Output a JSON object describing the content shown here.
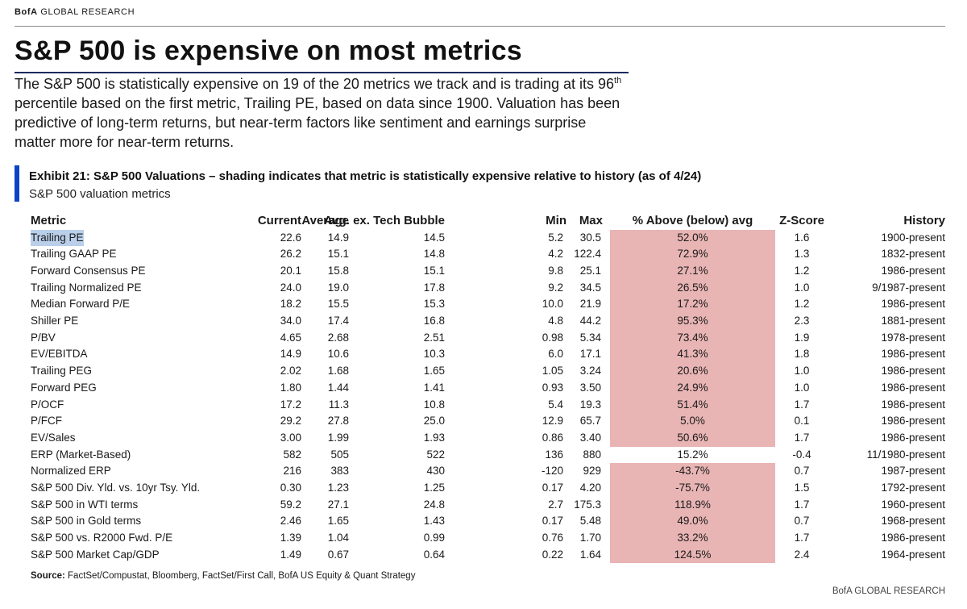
{
  "brand": {
    "bold": "BofA",
    "rest": " GLOBAL RESEARCH"
  },
  "headline": "S&P 500 is expensive on most metrics",
  "summary": {
    "part1": "The S&P 500 is statistically expensive on 19 of the 20 metrics we track and is trading at its 96",
    "sup": "th",
    "part2": " percentile based on the first metric, Trailing PE, based on data since 1900. Valuation has been predictive of long-term returns, but near-term factors like sentiment and earnings surprise matter more for near-term returns."
  },
  "exhibit": {
    "title": "Exhibit 21: S&P 500 Valuations – shading indicates that metric is statistically expensive relative to history (as of 4/24)",
    "subtitle": "S&P 500 valuation metrics"
  },
  "table": {
    "headers": {
      "metric": "Metric",
      "current": "Current",
      "average": "Average",
      "avg_ex": "Avg. ex. Tech Bubble",
      "min": "Min",
      "max": "Max",
      "pct": "% Above (below) avg",
      "z": "Z-Score",
      "history": "History"
    },
    "rows": [
      {
        "metric": "Trailing PE",
        "current": "22.6",
        "average": "14.9",
        "avg_ex": "14.5",
        "min": "5.2",
        "max": "30.5",
        "pct": "52.0%",
        "z": "1.6",
        "history": "1900-present",
        "shaded": true
      },
      {
        "metric": "Trailing GAAP PE",
        "current": "26.2",
        "average": "15.1",
        "avg_ex": "14.8",
        "min": "4.2",
        "max": "122.4",
        "pct": "72.9%",
        "z": "1.3",
        "history": "1832-present",
        "shaded": true
      },
      {
        "metric": "Forward Consensus PE",
        "current": "20.1",
        "average": "15.8",
        "avg_ex": "15.1",
        "min": "9.8",
        "max": "25.1",
        "pct": "27.1%",
        "z": "1.2",
        "history": "1986-present",
        "shaded": true
      },
      {
        "metric": "Trailing Normalized PE",
        "current": "24.0",
        "average": "19.0",
        "avg_ex": "17.8",
        "min": "9.2",
        "max": "34.5",
        "pct": "26.5%",
        "z": "1.0",
        "history": "9/1987-present",
        "shaded": true
      },
      {
        "metric": "Median Forward P/E",
        "current": "18.2",
        "average": "15.5",
        "avg_ex": "15.3",
        "min": "10.0",
        "max": "21.9",
        "pct": "17.2%",
        "z": "1.2",
        "history": "1986-present",
        "shaded": true
      },
      {
        "metric": "Shiller PE",
        "current": "34.0",
        "average": "17.4",
        "avg_ex": "16.8",
        "min": "4.8",
        "max": "44.2",
        "pct": "95.3%",
        "z": "2.3",
        "history": "1881-present",
        "shaded": true
      },
      {
        "metric": "P/BV",
        "current": "4.65",
        "average": "2.68",
        "avg_ex": "2.51",
        "min": "0.98",
        "max": "5.34",
        "pct": "73.4%",
        "z": "1.9",
        "history": "1978-present",
        "shaded": true
      },
      {
        "metric": "EV/EBITDA",
        "current": "14.9",
        "average": "10.6",
        "avg_ex": "10.3",
        "min": "6.0",
        "max": "17.1",
        "pct": "41.3%",
        "z": "1.8",
        "history": "1986-present",
        "shaded": true
      },
      {
        "metric": "Trailing PEG",
        "current": "2.02",
        "average": "1.68",
        "avg_ex": "1.65",
        "min": "1.05",
        "max": "3.24",
        "pct": "20.6%",
        "z": "1.0",
        "history": "1986-present",
        "shaded": true
      },
      {
        "metric": "Forward PEG",
        "current": "1.80",
        "average": "1.44",
        "avg_ex": "1.41",
        "min": "0.93",
        "max": "3.50",
        "pct": "24.9%",
        "z": "1.0",
        "history": "1986-present",
        "shaded": true
      },
      {
        "metric": "P/OCF",
        "current": "17.2",
        "average": "11.3",
        "avg_ex": "10.8",
        "min": "5.4",
        "max": "19.3",
        "pct": "51.4%",
        "z": "1.7",
        "history": "1986-present",
        "shaded": true
      },
      {
        "metric": "P/FCF",
        "current": "29.2",
        "average": "27.8",
        "avg_ex": "25.0",
        "min": "12.9",
        "max": "65.7",
        "pct": "5.0%",
        "z": "0.1",
        "history": "1986-present",
        "shaded": true
      },
      {
        "metric": "EV/Sales",
        "current": "3.00",
        "average": "1.99",
        "avg_ex": "1.93",
        "min": "0.86",
        "max": "3.40",
        "pct": "50.6%",
        "z": "1.7",
        "history": "1986-present",
        "shaded": true
      },
      {
        "metric": "ERP (Market-Based)",
        "current": "582",
        "average": "505",
        "avg_ex": "522",
        "min": "136",
        "max": "880",
        "pct": "15.2%",
        "z": "-0.4",
        "history": "11/1980-present",
        "shaded": false
      },
      {
        "metric": "Normalized ERP",
        "current": "216",
        "average": "383",
        "avg_ex": "430",
        "min": "-120",
        "max": "929",
        "pct": "-43.7%",
        "z": "0.7",
        "history": "1987-present",
        "shaded": true
      },
      {
        "metric": "S&P 500 Div. Yld. vs. 10yr Tsy. Yld.",
        "current": "0.30",
        "average": "1.23",
        "avg_ex": "1.25",
        "min": "0.17",
        "max": "4.20",
        "pct": "-75.7%",
        "z": "1.5",
        "history": "1792-present",
        "shaded": true
      },
      {
        "metric": "S&P 500 in WTI terms",
        "current": "59.2",
        "average": "27.1",
        "avg_ex": "24.8",
        "min": "2.7",
        "max": "175.3",
        "pct": "118.9%",
        "z": "1.7",
        "history": "1960-present",
        "shaded": true
      },
      {
        "metric": "S&P 500 in Gold terms",
        "current": "2.46",
        "average": "1.65",
        "avg_ex": "1.43",
        "min": "0.17",
        "max": "5.48",
        "pct": "49.0%",
        "z": "0.7",
        "history": "1968-present",
        "shaded": true
      },
      {
        "metric": "S&P 500 vs. R2000 Fwd. P/E",
        "current": "1.39",
        "average": "1.04",
        "avg_ex": "0.99",
        "min": "0.76",
        "max": "1.70",
        "pct": "33.2%",
        "z": "1.7",
        "history": "1986-present",
        "shaded": true
      },
      {
        "metric": "S&P 500 Market Cap/GDP",
        "current": "1.49",
        "average": "0.67",
        "avg_ex": "0.64",
        "min": "0.22",
        "max": "1.64",
        "pct": "124.5%",
        "z": "2.4",
        "history": "1964-present",
        "shaded": true
      }
    ]
  },
  "source": {
    "label": "Source:",
    "text": " FactSet/Compustat, Bloomberg, FactSet/First Call, BofA US Equity & Quant Strategy"
  },
  "footer_brand": "BofA GLOBAL RESEARCH",
  "colors": {
    "shade": "#e8b4b4",
    "accent": "#0a45c8",
    "headline_rule": "#1a2a5e",
    "selection": "#b9cfea"
  }
}
